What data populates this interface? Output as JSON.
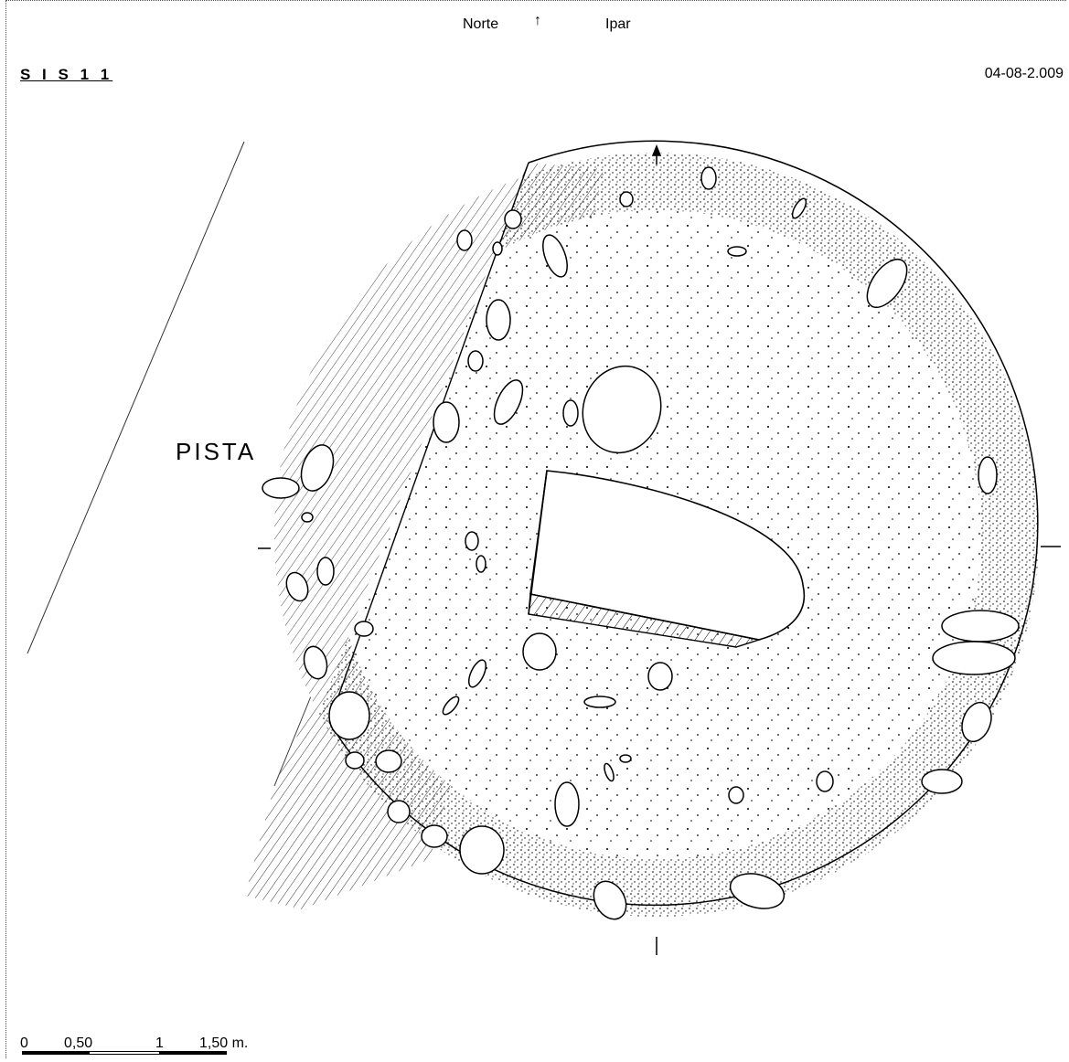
{
  "header": {
    "north_es": "Norte",
    "north_arrow": "↑",
    "north_eu": "Ipar",
    "site_code": "S I S   1 1",
    "date": "04-08-2.009"
  },
  "annotations": {
    "road_label": "PISTA"
  },
  "scale": {
    "labels": [
      "0",
      "0,50",
      "1",
      "1,50 m."
    ],
    "segments": [
      "black",
      "white",
      "black"
    ]
  },
  "colors": {
    "ink": "#000000",
    "paper": "#ffffff"
  }
}
